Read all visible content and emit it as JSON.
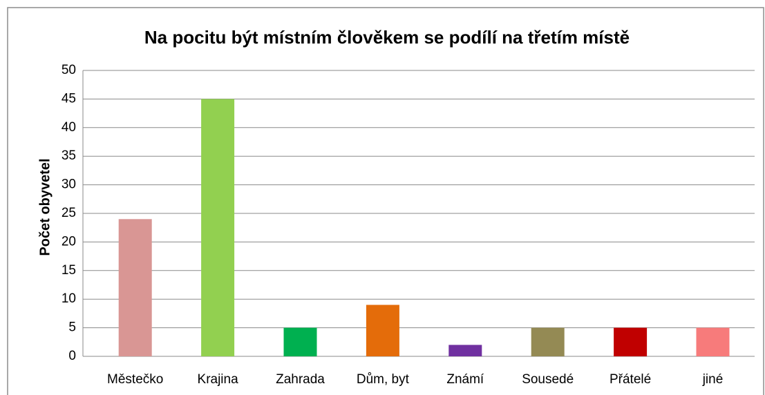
{
  "chart_data": {
    "type": "bar",
    "title": "Na pocitu být místním člověkem  se podílí na třetím místě",
    "y_label": "Počet obyvetel",
    "categories": [
      "Městečko",
      "Krajina",
      "Zahrada",
      "Dům, byt",
      "Známí",
      "Sousedé",
      "Přátelé",
      "jiné"
    ],
    "values": [
      24,
      45,
      5,
      9,
      2,
      5,
      5,
      5
    ],
    "colors": [
      "#d99694",
      "#92d050",
      "#00b050",
      "#e46c0a",
      "#7030a0",
      "#948a54",
      "#c00000",
      "#f77b7b"
    ],
    "ylim": [
      0,
      50
    ],
    "yticks": [
      0,
      5,
      10,
      15,
      20,
      25,
      30,
      35,
      40,
      45,
      50
    ],
    "grid": true
  }
}
